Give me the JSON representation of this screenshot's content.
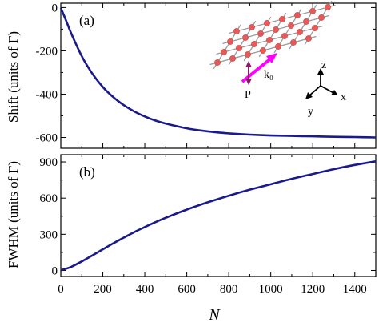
{
  "chart_data": [
    {
      "panel": "(a)",
      "type": "line",
      "ylabel": "Shift (units of Γ)",
      "xlim": [
        0,
        1500
      ],
      "ylim": [
        -650,
        20
      ],
      "xticks": [
        0,
        200,
        400,
        600,
        800,
        1000,
        1200,
        1400
      ],
      "yticks": [
        0,
        -200,
        -400,
        -600
      ],
      "ytick_labels": [
        "0",
        "-200",
        "-400",
        "-600"
      ],
      "series": [
        {
          "color": "#1a1a8c",
          "x": [
            0,
            25,
            50,
            100,
            150,
            200,
            250,
            300,
            350,
            400,
            450,
            500,
            600,
            700,
            800,
            900,
            1000,
            1100,
            1200,
            1300,
            1400,
            1500
          ],
          "y": [
            -2,
            -60,
            -120,
            -225,
            -305,
            -367,
            -414,
            -451,
            -480,
            -503,
            -522,
            -536,
            -558,
            -572,
            -581,
            -587,
            -591,
            -593,
            -595,
            -597,
            -598,
            -600
          ]
        }
      ],
      "inset": {
        "lattice_color": "#e85a5a",
        "k_label": "k₀",
        "p_label": "P",
        "axes_labels": {
          "x": "x",
          "y": "y",
          "z": "z"
        },
        "k_arrow_color": "#ff00ff",
        "p_arrow_color": "#8b1a6b"
      }
    },
    {
      "panel": "(b)",
      "type": "line",
      "xlabel": "N",
      "ylabel": "FWHM (units of Γ)",
      "xlim": [
        0,
        1500
      ],
      "ylim": [
        -50,
        960
      ],
      "xticks": [
        0,
        200,
        400,
        600,
        800,
        1000,
        1200,
        1400
      ],
      "xtick_labels": [
        "0",
        "200",
        "400",
        "600",
        "800",
        "1000",
        "1200",
        "1400"
      ],
      "yticks": [
        0,
        300,
        600,
        900
      ],
      "ytick_labels": [
        "0",
        "300",
        "600",
        "900"
      ],
      "series": [
        {
          "color": "#1a1a8c",
          "x": [
            0,
            25,
            50,
            100,
            150,
            200,
            250,
            300,
            350,
            400,
            450,
            500,
            600,
            700,
            800,
            900,
            1000,
            1100,
            1200,
            1300,
            1400,
            1500
          ],
          "y": [
            2,
            15,
            30,
            75,
            125,
            175,
            225,
            272,
            318,
            360,
            400,
            437,
            505,
            565,
            620,
            670,
            715,
            760,
            800,
            840,
            875,
            905
          ]
        }
      ]
    }
  ]
}
